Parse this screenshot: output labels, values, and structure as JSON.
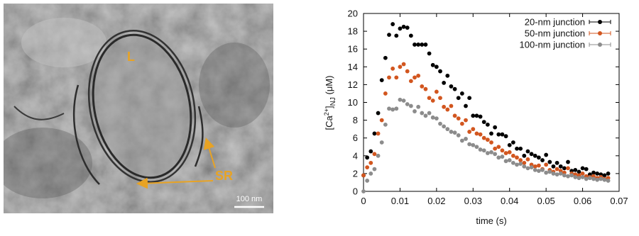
{
  "micrograph": {
    "region_label": "L",
    "arrow_label": "SR",
    "scale_bar": "100 nm"
  },
  "chart_data": {
    "type": "scatter",
    "x_label": "time (s)",
    "y_label": {
      "open": "[Ca",
      "superscript": "2+",
      "close": "]",
      "subscript": "NJ",
      "unit": " (μM)"
    },
    "xlim": [
      0,
      0.07
    ],
    "xticks": [
      0,
      0.01,
      0.02,
      0.03,
      0.04,
      0.05,
      0.06,
      0.07
    ],
    "ylim": [
      0,
      20
    ],
    "yticks": [
      0,
      2,
      4,
      6,
      8,
      10,
      12,
      14,
      16,
      18,
      20
    ],
    "legend": "upper right",
    "x": [
      0,
      0.001,
      0.002,
      0.003,
      0.004,
      0.005,
      0.006,
      0.007,
      0.008,
      0.009,
      0.01,
      0.011,
      0.012,
      0.013,
      0.014,
      0.015,
      0.016,
      0.017,
      0.018,
      0.019,
      0.02,
      0.021,
      0.022,
      0.023,
      0.024,
      0.025,
      0.026,
      0.027,
      0.028,
      0.029,
      0.03,
      0.031,
      0.032,
      0.033,
      0.034,
      0.035,
      0.036,
      0.037,
      0.038,
      0.039,
      0.04,
      0.041,
      0.042,
      0.043,
      0.044,
      0.045,
      0.046,
      0.047,
      0.048,
      0.049,
      0.05,
      0.051,
      0.052,
      0.053,
      0.054,
      0.055,
      0.056,
      0.057,
      0.058,
      0.059,
      0.06,
      0.061,
      0.062,
      0.063,
      0.064,
      0.065,
      0.066,
      0.067
    ],
    "series": [
      {
        "name": "20-nm junction",
        "color": "#000000",
        "values": [
          1.8,
          3.8,
          4.5,
          6.5,
          8.8,
          12.5,
          15,
          17.6,
          18.8,
          17.5,
          18.3,
          18.5,
          18.4,
          17.5,
          16.5,
          16.5,
          16.5,
          16.5,
          15.5,
          14.2,
          14,
          13.5,
          12.2,
          13,
          11.8,
          11.5,
          10.5,
          11,
          9.6,
          10.5,
          8.5,
          8.5,
          8.4,
          7.8,
          7.5,
          6.5,
          7.2,
          6.4,
          6.4,
          6.2,
          5.2,
          5.5,
          4.8,
          4.8,
          4,
          4.5,
          4.2,
          4,
          3.8,
          3.5,
          4.1,
          3.3,
          2.8,
          3.2,
          2.8,
          2.6,
          3.3,
          2.3,
          2.4,
          2.2,
          2.6,
          2.5,
          1.9,
          2.1,
          2,
          1.9,
          1.8,
          2
        ]
      },
      {
        "name": "50-nm junction",
        "color": "#d2561f",
        "values": [
          1.8,
          2.7,
          3.2,
          4.2,
          6.5,
          8,
          11,
          12.8,
          13.8,
          12.8,
          14,
          14.3,
          13.5,
          12.4,
          12.8,
          13,
          11.8,
          11.5,
          10.5,
          10.2,
          11.2,
          10.5,
          9.5,
          9.2,
          9.6,
          8.5,
          8.2,
          7.6,
          8,
          6.7,
          7,
          6.5,
          6.4,
          6,
          5.8,
          5.5,
          4.8,
          5,
          4.6,
          4.3,
          4.4,
          4,
          3.8,
          3.5,
          3.2,
          3.6,
          3,
          2.8,
          2.9,
          2.5,
          3,
          2.4,
          2.2,
          2.5,
          2.3,
          2.1,
          2.6,
          2,
          1.9,
          1.8,
          2,
          1.7,
          1.6,
          1.7,
          1.5,
          1.6,
          1.4,
          1.5
        ]
      },
      {
        "name": "100-nm junction",
        "color": "#8c8c8c",
        "values": [
          0,
          1.2,
          2,
          2.5,
          4,
          5.5,
          7.5,
          9.3,
          9.2,
          9.3,
          10.3,
          10.2,
          9.8,
          9.6,
          9,
          9.5,
          8.8,
          8.5,
          8.8,
          8.3,
          8.2,
          7.6,
          7.3,
          7,
          6.7,
          6.6,
          6.3,
          5.7,
          5.9,
          5.3,
          5.2,
          5,
          4.7,
          4.6,
          4.3,
          4.4,
          4.2,
          3.8,
          3.9,
          3.4,
          3.5,
          3.2,
          3,
          3.1,
          2.8,
          2.6,
          2.7,
          2.4,
          2.3,
          2.4,
          2.1,
          2.2,
          2,
          1.9,
          2,
          1.8,
          1.7,
          1.8,
          1.6,
          1.5,
          1.6,
          1.4,
          1.5,
          1.4,
          1.3,
          1.4,
          1.3,
          1.2
        ]
      }
    ]
  }
}
